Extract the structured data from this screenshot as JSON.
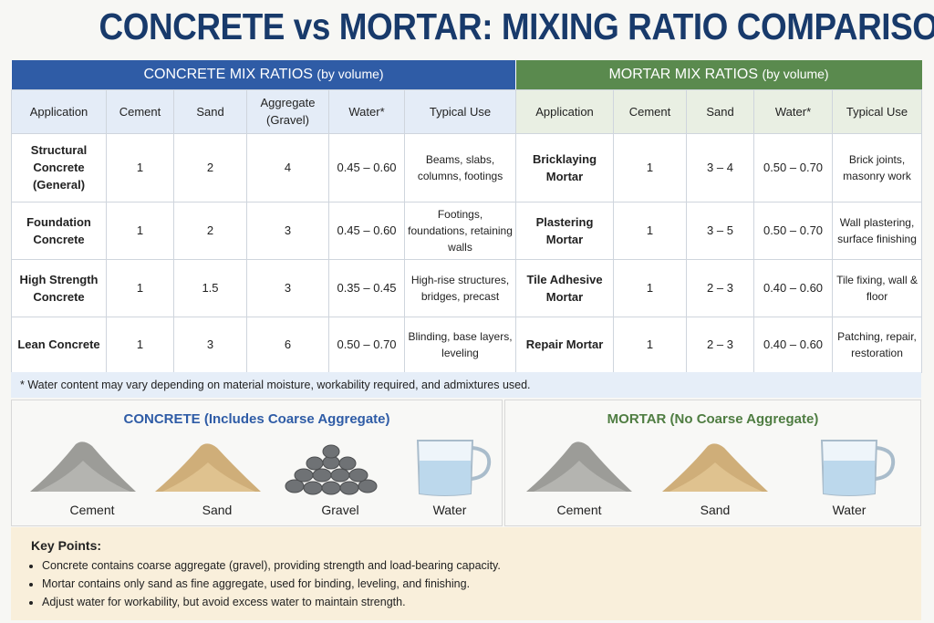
{
  "title": "CONCRETE vs MORTAR: MIXING RATIO COMPARISON",
  "concrete_table": {
    "heading": "CONCRETE MIX RATIOS",
    "heading_note": "(by volume)",
    "columns": [
      "Application",
      "Cement",
      "Sand",
      "Aggregate (Gravel)",
      "Water*",
      "Typical Use"
    ],
    "rows": [
      [
        "Structural Concrete (General)",
        "1",
        "2",
        "4",
        "0.45 – 0.60",
        "Beams, slabs, columns, footings"
      ],
      [
        "Foundation Concrete",
        "1",
        "2",
        "3",
        "0.45 – 0.60",
        "Footings, foundations, retaining walls"
      ],
      [
        "High Strength Concrete",
        "1",
        "1.5",
        "3",
        "0.35 – 0.45",
        "High-rise structures, bridges, precast"
      ],
      [
        "Lean Concrete",
        "1",
        "3",
        "6",
        "0.50 – 0.70",
        "Blinding, base layers, leveling"
      ]
    ]
  },
  "mortar_table": {
    "heading": "MORTAR MIX RATIOS",
    "heading_note": "(by volume)",
    "columns": [
      "Application",
      "Cement",
      "Sand",
      "Water*",
      "Typical Use"
    ],
    "rows": [
      [
        "Bricklaying Mortar",
        "1",
        "3 – 4",
        "0.50 – 0.70",
        "Brick joints, masonry work"
      ],
      [
        "Plastering Mortar",
        "1",
        "3 – 5",
        "0.50 – 0.70",
        "Wall plastering, surface finishing"
      ],
      [
        "Tile Adhesive Mortar",
        "1",
        "2 – 3",
        "0.40 – 0.60",
        "Tile fixing, wall & floor"
      ],
      [
        "Repair Mortar",
        "1",
        "2 – 3",
        "0.40 – 0.60",
        "Patching, repair, restoration"
      ]
    ]
  },
  "footnote": "* Water content may vary depending on material moisture, workability required, and admixtures used.",
  "concrete_panel": {
    "heading": "CONCRETE (Includes Coarse Aggregate)",
    "items": [
      "Cement",
      "Sand",
      "Gravel",
      "Water"
    ]
  },
  "mortar_panel": {
    "heading": "MORTAR (No Coarse Aggregate)",
    "items": [
      "Cement",
      "Sand",
      "Water"
    ]
  },
  "key_points": {
    "heading": "Key Points:",
    "items": [
      "Concrete contains coarse aggregate (gravel), providing strength and load-bearing capacity.",
      "Mortar contains only sand as fine aggregate, used for binding, leveling, and finishing.",
      "Adjust water for workability, but avoid excess water to maintain strength."
    ]
  }
}
